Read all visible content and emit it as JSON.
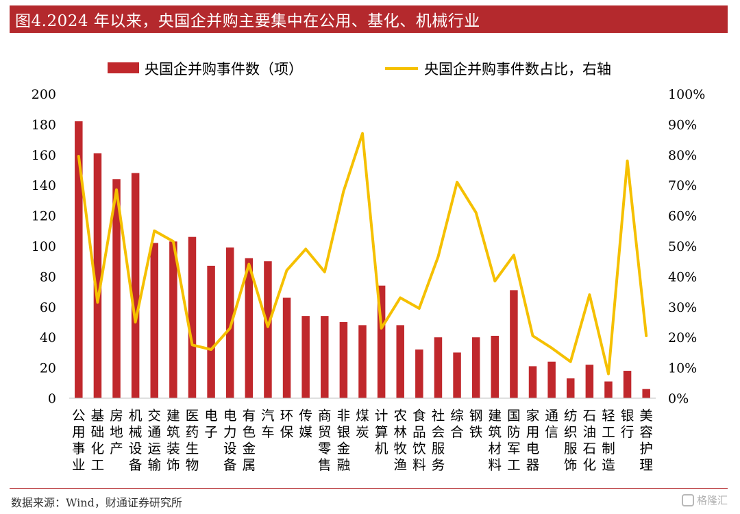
{
  "header": {
    "title": "图4.2024 年以来，央国企并购主要集中在公用、基化、机械行业"
  },
  "footer": {
    "source": "数据来源：Wind，财通证券研究所",
    "watermark": "格隆汇"
  },
  "colors": {
    "accent": "#b4292d",
    "bar": "#c0282c",
    "line": "#f5c000",
    "axis": "#000000"
  },
  "chart_data": {
    "type": "bar",
    "categories": [
      "公用事业",
      "基础化工",
      "房地产",
      "机械设备",
      "交通运输",
      "建筑装饰",
      "医药生物",
      "电子",
      "电力设备",
      "有色金属",
      "汽车",
      "环保",
      "传媒",
      "商贸零售",
      "非银金融",
      "煤炭",
      "计算机",
      "农林牧渔",
      "食品饮料",
      "社会服务",
      "综合",
      "钢铁",
      "建筑材料",
      "国防军工",
      "家用电器",
      "通信",
      "纺织服饰",
      "石油石化",
      "轻工制造",
      "银行",
      "美容护理"
    ],
    "series": [
      {
        "name": "央国企并购事件数（项）",
        "type": "bar",
        "axis": "left",
        "values": [
          182,
          161,
          144,
          148,
          102,
          103,
          106,
          87,
          99,
          92,
          90,
          66,
          54,
          54,
          50,
          48,
          74,
          48,
          32,
          40,
          30,
          40,
          41,
          71,
          21,
          24,
          13,
          22,
          11,
          18,
          6
        ]
      },
      {
        "name": "央国企并购事件数占比，右轴",
        "type": "line",
        "axis": "right",
        "values": [
          79.5,
          31.5,
          68.5,
          25,
          55,
          51.5,
          17.5,
          16,
          23,
          44,
          23.5,
          42,
          49,
          41.5,
          68,
          87,
          23,
          33,
          29.5,
          46.5,
          71,
          61,
          38.5,
          47,
          20.5,
          16.5,
          12,
          34,
          8,
          78,
          20.5
        ]
      }
    ],
    "ylim": [
      0,
      200
    ],
    "y_ticks": [
      0,
      20,
      40,
      60,
      80,
      100,
      120,
      140,
      160,
      180,
      200
    ],
    "y2lim": [
      0,
      100
    ],
    "y2_ticks": [
      "0%",
      "10%",
      "20%",
      "30%",
      "40%",
      "50%",
      "60%",
      "70%",
      "80%",
      "90%",
      "100%"
    ],
    "xlabel": "",
    "ylabel": "",
    "legend_position": "top",
    "grid": false
  }
}
